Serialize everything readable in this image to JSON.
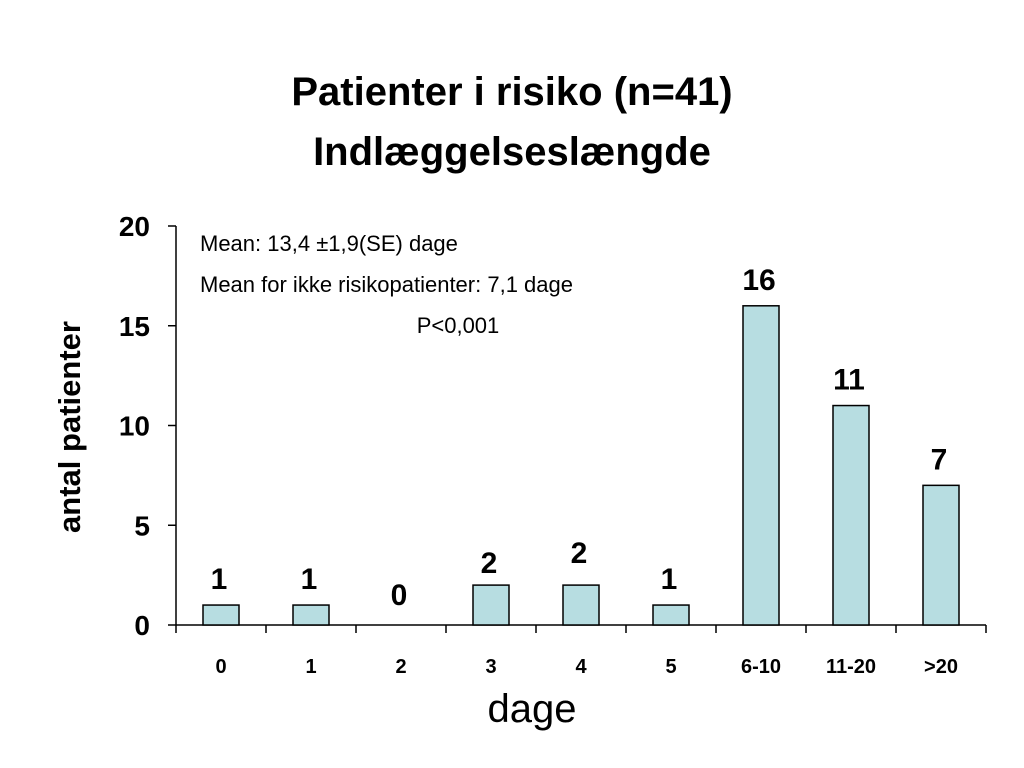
{
  "title_line1": "Patienter i risiko (n=41)",
  "title_line2": "Indlæggelseslængde",
  "colors": {
    "bar_fill": "#b7dde1",
    "bar_stroke": "#000000",
    "axis": "#000000"
  },
  "chart_data": {
    "type": "bar",
    "categories": [
      "0",
      "1",
      "2",
      "3",
      "4",
      "5",
      "6-10",
      "11-20",
      ">20"
    ],
    "values": [
      1,
      1,
      0,
      2,
      2,
      1,
      16,
      11,
      7
    ],
    "data_labels": [
      "1",
      "1",
      "0",
      "2",
      "2",
      "1",
      "16",
      "11",
      "7"
    ],
    "xlabel": "dage",
    "ylabel": "antal patienter",
    "ylim": [
      0,
      20
    ],
    "yticks": [
      "0",
      "5",
      "10",
      "15",
      "20"
    ],
    "grid": false,
    "annotations": [
      "Mean: 13,4 ±1,9(SE) dage",
      "Mean for ikke risikopatienter: 7,1 dage",
      "P<0,001"
    ]
  }
}
